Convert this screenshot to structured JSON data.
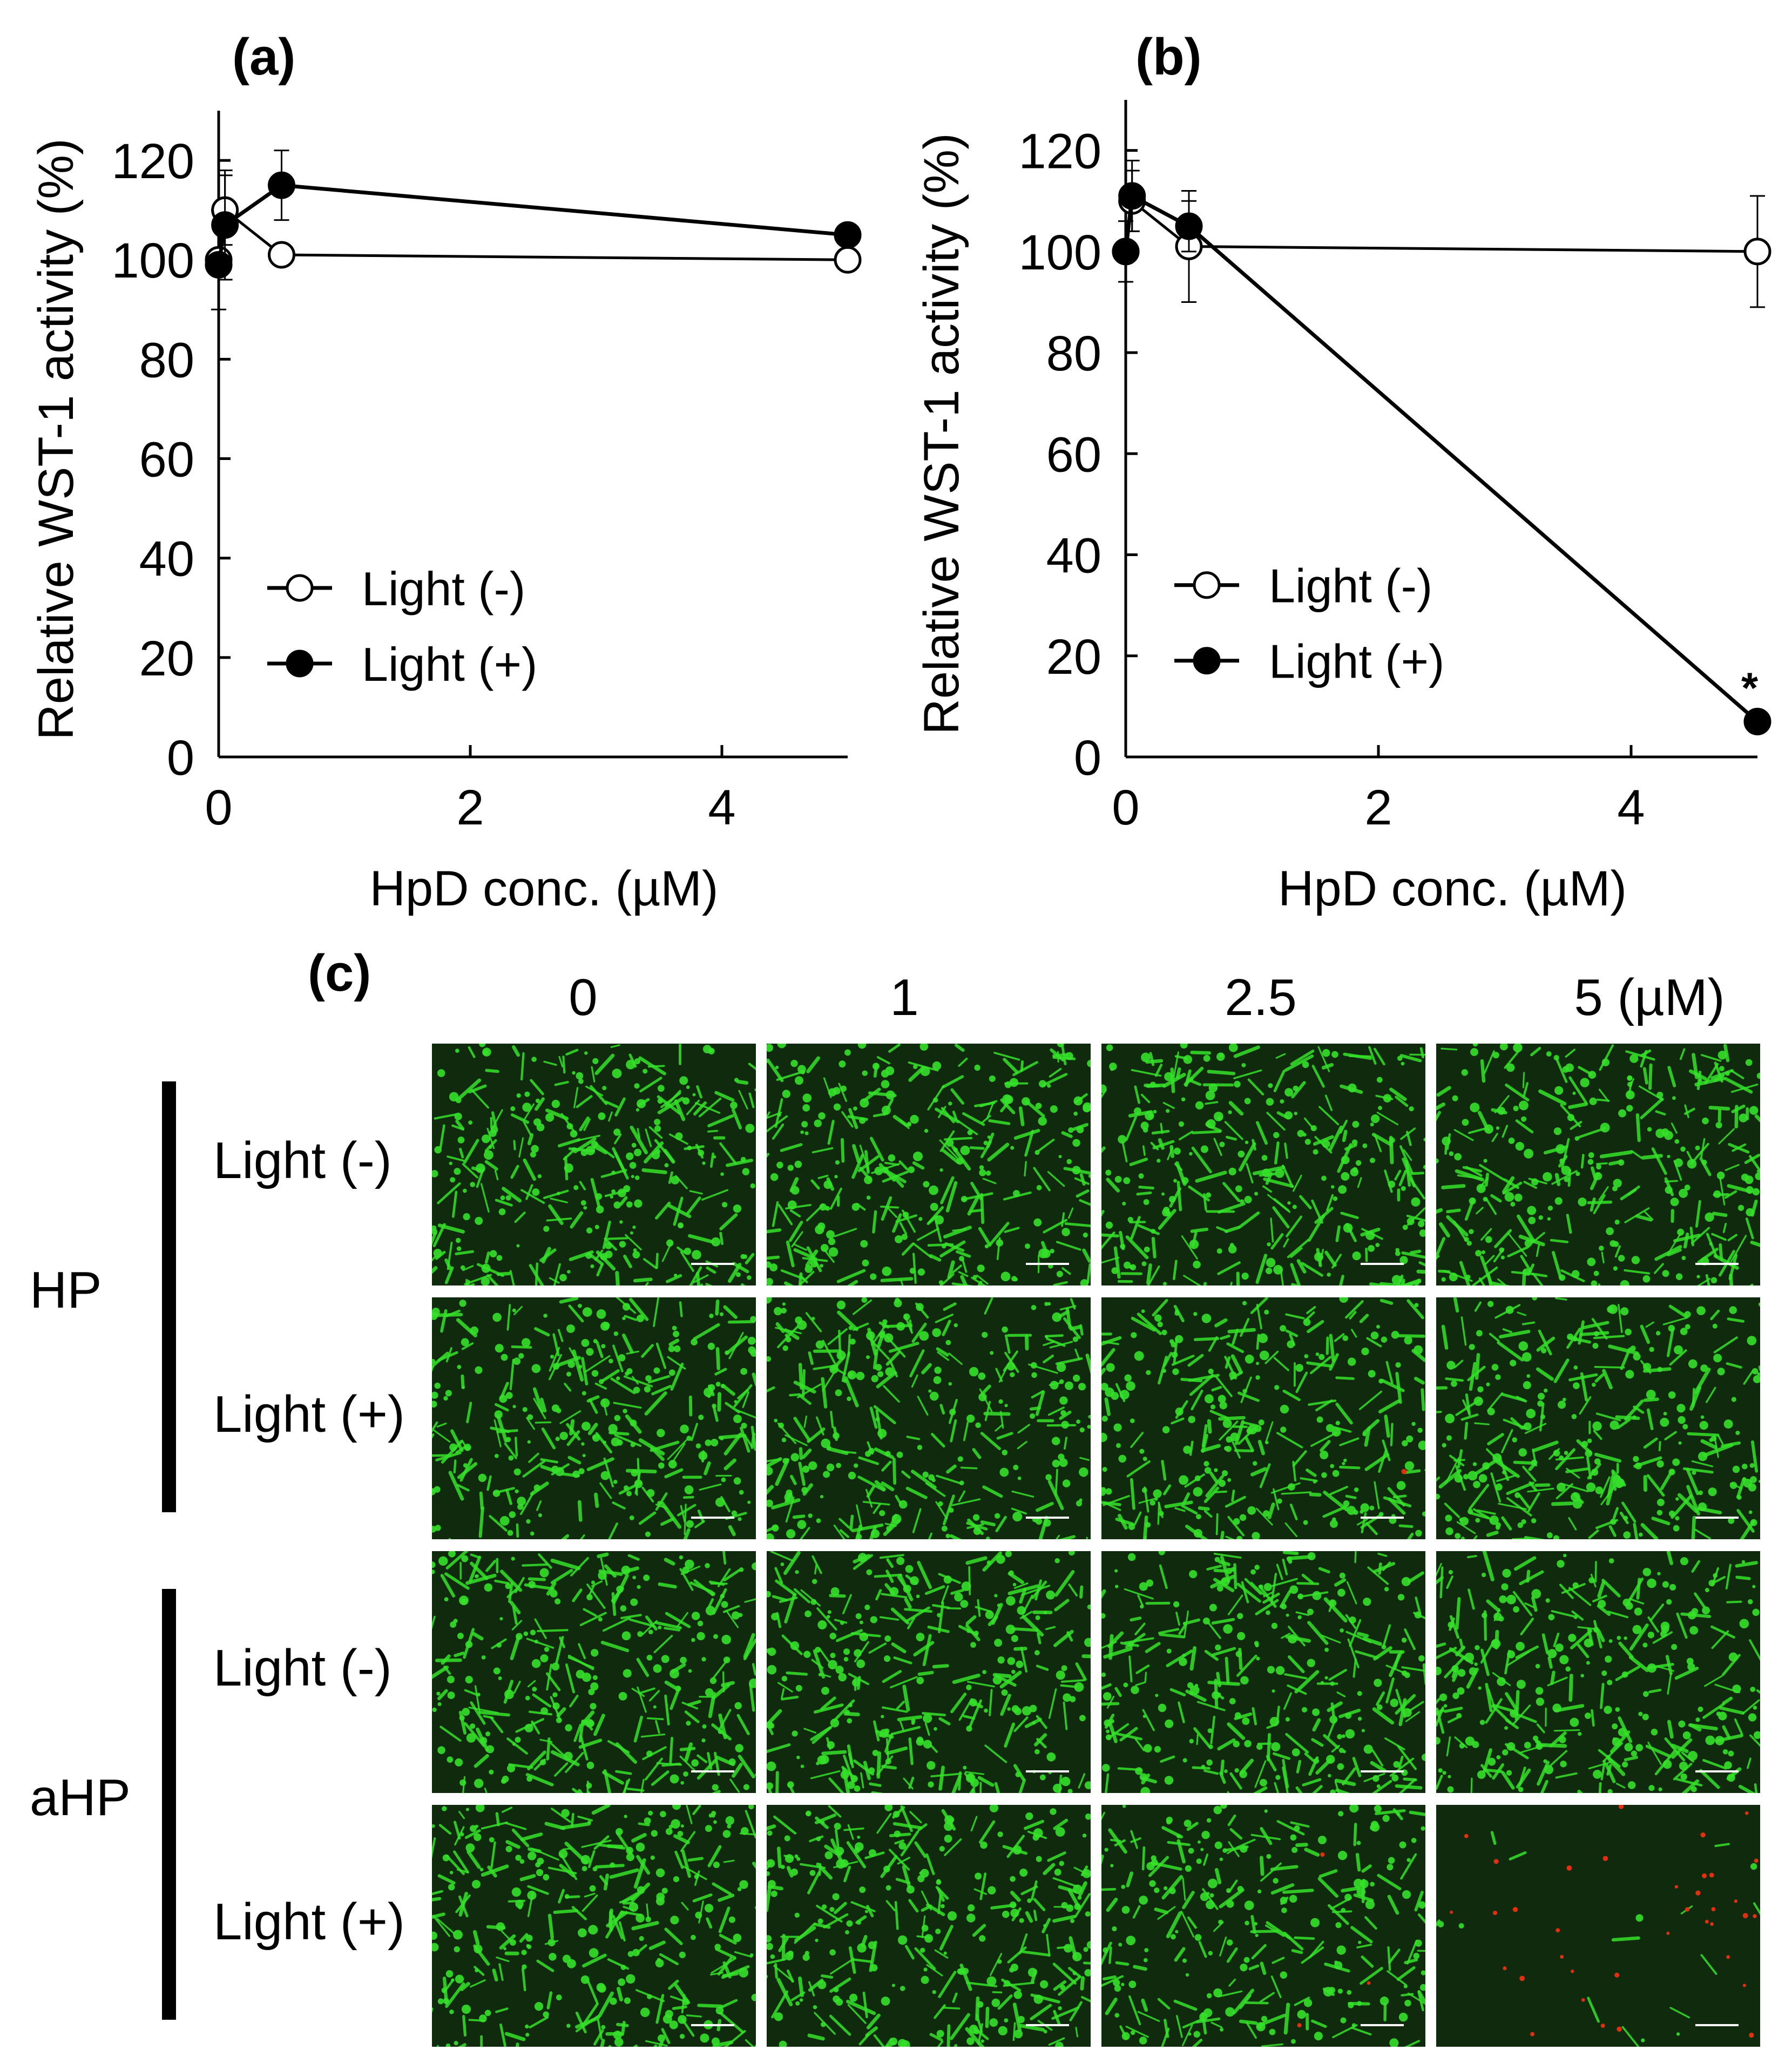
{
  "chart_data": [
    {
      "panel": "(a)",
      "type": "line",
      "xlabel": "HpD conc. (µM)",
      "ylabel": "Relative WST-1 activity (%)",
      "xlim": [
        0,
        5
      ],
      "ylim": [
        0,
        130
      ],
      "xticks": [
        "0",
        "2",
        "4"
      ],
      "yticks": [
        "0",
        "20",
        "40",
        "60",
        "80",
        "100",
        "120"
      ],
      "grid": false,
      "legend_position": "lower-left",
      "series": [
        {
          "name": "Light (-)",
          "marker": "open-circle",
          "x": [
            0,
            0.05,
            0.5,
            5
          ],
          "y": [
            100,
            110,
            101,
            100
          ],
          "err": [
            10,
            7,
            0,
            0
          ]
        },
        {
          "name": "Light (+)",
          "marker": "filled-circle",
          "x": [
            0,
            0.05,
            0.5,
            5
          ],
          "y": [
            99,
            107,
            115,
            105
          ],
          "err": [
            0,
            11,
            7,
            0
          ]
        }
      ],
      "annotations": []
    },
    {
      "panel": "(b)",
      "type": "line",
      "xlabel": "HpD conc. (µM)",
      "ylabel": "Relative WST-1 activity (%)",
      "xlim": [
        0,
        5
      ],
      "ylim": [
        0,
        130
      ],
      "xticks": [
        "0",
        "2",
        "4"
      ],
      "yticks": [
        "0",
        "20",
        "40",
        "60",
        "80",
        "100",
        "120"
      ],
      "grid": false,
      "legend_position": "lower-left",
      "series": [
        {
          "name": "Light (-)",
          "marker": "open-circle",
          "x": [
            0,
            0.05,
            0.5,
            5
          ],
          "y": [
            100,
            110,
            101,
            100
          ],
          "err": [
            6,
            6,
            11,
            11
          ]
        },
        {
          "name": "Light (+)",
          "marker": "filled-circle",
          "x": [
            0,
            0.05,
            0.5,
            5
          ],
          "y": [
            100,
            111,
            105,
            7
          ],
          "err": [
            0,
            7,
            5,
            0
          ]
        }
      ],
      "annotations": [
        {
          "text": "*",
          "x": 5,
          "y": 15
        }
      ]
    }
  ],
  "panel_c": {
    "label": "(c)",
    "columns": [
      "0",
      "1",
      "2.5",
      "5 (µM)"
    ],
    "groups": [
      {
        "name": "HP",
        "rows": [
          "Light (-)",
          "Light (+)"
        ]
      },
      {
        "name": "aHP",
        "rows": [
          "Light (-)",
          "Light (+)"
        ]
      }
    ],
    "cell_colors": {
      "live": "#35e02a",
      "dead": "#e03010",
      "background": "#0f2a0c",
      "scalebar": "#ffffff"
    },
    "dead_cell_fraction": [
      [
        0,
        0,
        0,
        0
      ],
      [
        0,
        0,
        0.02,
        0
      ],
      [
        0,
        0,
        0,
        0
      ],
      [
        0,
        0,
        0.05,
        0.6
      ]
    ],
    "live_cell_density": [
      [
        1,
        1,
        1,
        1
      ],
      [
        1,
        1,
        0.95,
        1
      ],
      [
        1,
        1,
        1,
        1
      ],
      [
        1,
        1,
        0.85,
        0.05
      ]
    ]
  }
}
